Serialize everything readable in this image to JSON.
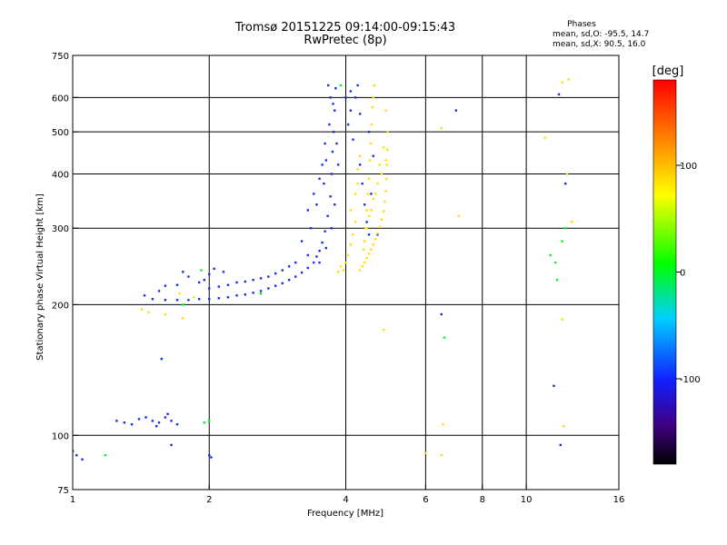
{
  "header": {
    "title": "Tromsø 20151225 09:14:00-09:15:43",
    "subtitle": "RwPretec (8p)",
    "stats_heading": "Phases",
    "stats_o": "mean, sd,O: -95.5, 14.7",
    "stats_x": "mean, sd,X:  90.5, 16.0"
  },
  "colorbar": {
    "label": "[deg]",
    "ticks": [
      {
        "value": 100,
        "label": "100"
      },
      {
        "value": 0,
        "label": "0"
      },
      {
        "value": -100,
        "label": "-100"
      }
    ],
    "range": [
      -180,
      180
    ]
  },
  "colors": {
    "o_mode": "#1a2de0",
    "x_mode": "#ffe000",
    "grid": "#000000"
  },
  "chart_data": {
    "type": "scatter",
    "title": "Tromsø 20151225 09:14:00-09:15:43",
    "subtitle": "RwPretec (8p)",
    "xlabel": "Frequency [MHz]",
    "ylabel": "Stationary phase Virtual Height [km]",
    "xscale": "log",
    "yscale": "log",
    "xlim": [
      1,
      16
    ],
    "ylim": [
      75,
      750
    ],
    "x_ticks": [
      {
        "value": 1,
        "label": "1"
      },
      {
        "value": 2,
        "label": "2"
      },
      {
        "value": 4,
        "label": "4"
      },
      {
        "value": 6,
        "label": "6"
      },
      {
        "value": 8,
        "label": "8"
      },
      {
        "value": 10,
        "label": "10"
      },
      {
        "value": 16,
        "label": "16"
      }
    ],
    "y_ticks": [
      {
        "value": 75,
        "label": "75"
      },
      {
        "value": 100,
        "label": "100"
      },
      {
        "value": 200,
        "label": "200"
      },
      {
        "value": 300,
        "label": "300"
      },
      {
        "value": 400,
        "label": "400"
      },
      {
        "value": 500,
        "label": "500"
      },
      {
        "value": 600,
        "label": "600"
      },
      {
        "value": 750,
        "label": "750"
      }
    ],
    "grid_x": [
      2,
      4,
      6,
      8,
      10
    ],
    "grid_y": [
      100,
      200,
      300,
      400,
      500,
      600
    ],
    "color_scale": "phase [deg], rainbow -180 to 180",
    "series": [
      {
        "mode": "O",
        "phase": -100,
        "points": [
          [
            1.44,
            210
          ],
          [
            1.5,
            206
          ],
          [
            1.6,
            205
          ],
          [
            1.7,
            205
          ],
          [
            1.8,
            205
          ],
          [
            1.9,
            206
          ],
          [
            2.0,
            206
          ],
          [
            2.1,
            207
          ],
          [
            2.2,
            208
          ],
          [
            2.3,
            210
          ],
          [
            2.4,
            211
          ],
          [
            2.5,
            213
          ],
          [
            2.6,
            215
          ],
          [
            2.7,
            218
          ],
          [
            2.8,
            221
          ],
          [
            2.9,
            224
          ],
          [
            3.0,
            228
          ],
          [
            3.1,
            232
          ],
          [
            3.2,
            237
          ],
          [
            3.3,
            243
          ],
          [
            3.4,
            250
          ],
          [
            3.45,
            258
          ],
          [
            3.5,
            266
          ],
          [
            3.55,
            278
          ],
          [
            3.6,
            295
          ],
          [
            3.65,
            320
          ],
          [
            3.7,
            355
          ],
          [
            3.72,
            400
          ],
          [
            3.74,
            450
          ],
          [
            3.76,
            500
          ],
          [
            3.78,
            560
          ],
          [
            3.8,
            630
          ],
          [
            3.66,
            640
          ],
          [
            3.7,
            600
          ],
          [
            3.6,
            470
          ],
          [
            3.55,
            420
          ],
          [
            3.5,
            390
          ],
          [
            3.4,
            360
          ],
          [
            3.3,
            330
          ],
          [
            3.35,
            300
          ],
          [
            3.45,
            340
          ],
          [
            3.58,
            380
          ],
          [
            3.62,
            430
          ],
          [
            3.68,
            520
          ],
          [
            3.75,
            580
          ],
          [
            3.82,
            470
          ],
          [
            3.85,
            420
          ],
          [
            3.78,
            340
          ],
          [
            3.72,
            300
          ],
          [
            3.62,
            270
          ],
          [
            3.5,
            250
          ],
          [
            3.3,
            260
          ],
          [
            3.2,
            280
          ],
          [
            3.1,
            250
          ],
          [
            3.0,
            245
          ],
          [
            2.9,
            240
          ],
          [
            2.8,
            236
          ],
          [
            2.7,
            232
          ],
          [
            2.6,
            230
          ],
          [
            2.5,
            228
          ],
          [
            2.4,
            226
          ],
          [
            2.3,
            225
          ],
          [
            2.2,
            222
          ],
          [
            2.1,
            220
          ],
          [
            2.0,
            218
          ],
          [
            1.9,
            225
          ],
          [
            1.8,
            232
          ],
          [
            1.7,
            222
          ],
          [
            1.75,
            238
          ],
          [
            2.05,
            242
          ],
          [
            2.0,
            235
          ],
          [
            1.95,
            228
          ],
          [
            2.15,
            238
          ],
          [
            1.55,
            215
          ],
          [
            1.6,
            221
          ],
          [
            4.0,
            600
          ],
          [
            4.05,
            520
          ],
          [
            4.1,
            560
          ],
          [
            4.15,
            480
          ],
          [
            4.1,
            620
          ],
          [
            4.3,
            420
          ],
          [
            4.35,
            380
          ],
          [
            4.4,
            340
          ],
          [
            4.45,
            310
          ],
          [
            4.5,
            290
          ],
          [
            4.55,
            360
          ],
          [
            4.6,
            440
          ],
          [
            4.5,
            500
          ],
          [
            4.3,
            550
          ],
          [
            4.2,
            600
          ],
          [
            4.25,
            640
          ],
          [
            4.7,
            290
          ],
          [
            1.25,
            108
          ],
          [
            1.3,
            107
          ],
          [
            1.35,
            106
          ],
          [
            1.4,
            109
          ],
          [
            1.45,
            110
          ],
          [
            1.5,
            108
          ],
          [
            1.55,
            107
          ],
          [
            1.6,
            110
          ],
          [
            1.65,
            108
          ],
          [
            1.7,
            106
          ],
          [
            1.62,
            112
          ],
          [
            1.53,
            105
          ],
          [
            1.57,
            150
          ],
          [
            1.0,
            92
          ],
          [
            1.02,
            90
          ],
          [
            1.05,
            88
          ],
          [
            1.65,
            95
          ],
          [
            2.0,
            90
          ],
          [
            2.02,
            89
          ],
          [
            6.5,
            190
          ],
          [
            7.0,
            560
          ],
          [
            11.8,
            610
          ],
          [
            12.2,
            380
          ],
          [
            11.5,
            130
          ],
          [
            11.9,
            95
          ]
        ]
      },
      {
        "mode": "X",
        "phase": 100,
        "points": [
          [
            4.3,
            240
          ],
          [
            4.35,
            245
          ],
          [
            4.4,
            250
          ],
          [
            4.45,
            256
          ],
          [
            4.5,
            262
          ],
          [
            4.55,
            268
          ],
          [
            4.6,
            275
          ],
          [
            4.65,
            283
          ],
          [
            4.7,
            292
          ],
          [
            4.75,
            302
          ],
          [
            4.8,
            314
          ],
          [
            4.85,
            328
          ],
          [
            4.88,
            345
          ],
          [
            4.9,
            365
          ],
          [
            4.92,
            390
          ],
          [
            4.93,
            420
          ],
          [
            4.94,
            455
          ],
          [
            4.95,
            500
          ],
          [
            4.85,
            460
          ],
          [
            4.75,
            420
          ],
          [
            4.7,
            380
          ],
          [
            4.6,
            350
          ],
          [
            4.5,
            320
          ],
          [
            4.45,
            300
          ],
          [
            4.55,
            330
          ],
          [
            4.65,
            360
          ],
          [
            4.8,
            400
          ],
          [
            4.9,
            430
          ],
          [
            4.4,
            280
          ],
          [
            4.38,
            268
          ],
          [
            4.42,
            300
          ],
          [
            4.45,
            330
          ],
          [
            4.48,
            360
          ],
          [
            4.5,
            390
          ],
          [
            4.52,
            430
          ],
          [
            4.54,
            470
          ],
          [
            4.56,
            520
          ],
          [
            4.58,
            570
          ],
          [
            4.6,
            600
          ],
          [
            4.62,
            640
          ],
          [
            3.95,
            240
          ],
          [
            4.0,
            250
          ],
          [
            4.05,
            260
          ],
          [
            4.1,
            275
          ],
          [
            4.15,
            290
          ],
          [
            4.2,
            310
          ],
          [
            4.1,
            330
          ],
          [
            4.2,
            360
          ],
          [
            4.25,
            380
          ],
          [
            3.9,
            245
          ],
          [
            3.85,
            238
          ],
          [
            4.25,
            410
          ],
          [
            4.3,
            440
          ],
          [
            1.42,
            195
          ],
          [
            1.47,
            192
          ],
          [
            1.6,
            190
          ],
          [
            1.75,
            186
          ],
          [
            1.85,
            208
          ],
          [
            1.72,
            212
          ],
          [
            4.85,
            175
          ],
          [
            4.9,
            560
          ],
          [
            6.0,
            91
          ],
          [
            6.5,
            90
          ],
          [
            6.5,
            510
          ],
          [
            6.55,
            106
          ],
          [
            7.1,
            320
          ],
          [
            11.0,
            485
          ],
          [
            12.0,
            650
          ],
          [
            12.4,
            660
          ],
          [
            12.0,
            185
          ],
          [
            12.1,
            105
          ],
          [
            12.6,
            310
          ],
          [
            12.3,
            400
          ]
        ]
      },
      {
        "mode": "noise",
        "phase": 0,
        "points": [
          [
            1.95,
            107
          ],
          [
            2.0,
            108
          ],
          [
            1.92,
            240
          ],
          [
            2.6,
            212
          ],
          [
            6.6,
            168
          ],
          [
            11.7,
            228
          ],
          [
            11.6,
            250
          ],
          [
            12.2,
            300
          ],
          [
            12.0,
            280
          ],
          [
            11.3,
            260
          ],
          [
            3.9,
            640
          ],
          [
            1.18,
            90
          ],
          [
            1.75,
            200
          ]
        ]
      }
    ]
  }
}
